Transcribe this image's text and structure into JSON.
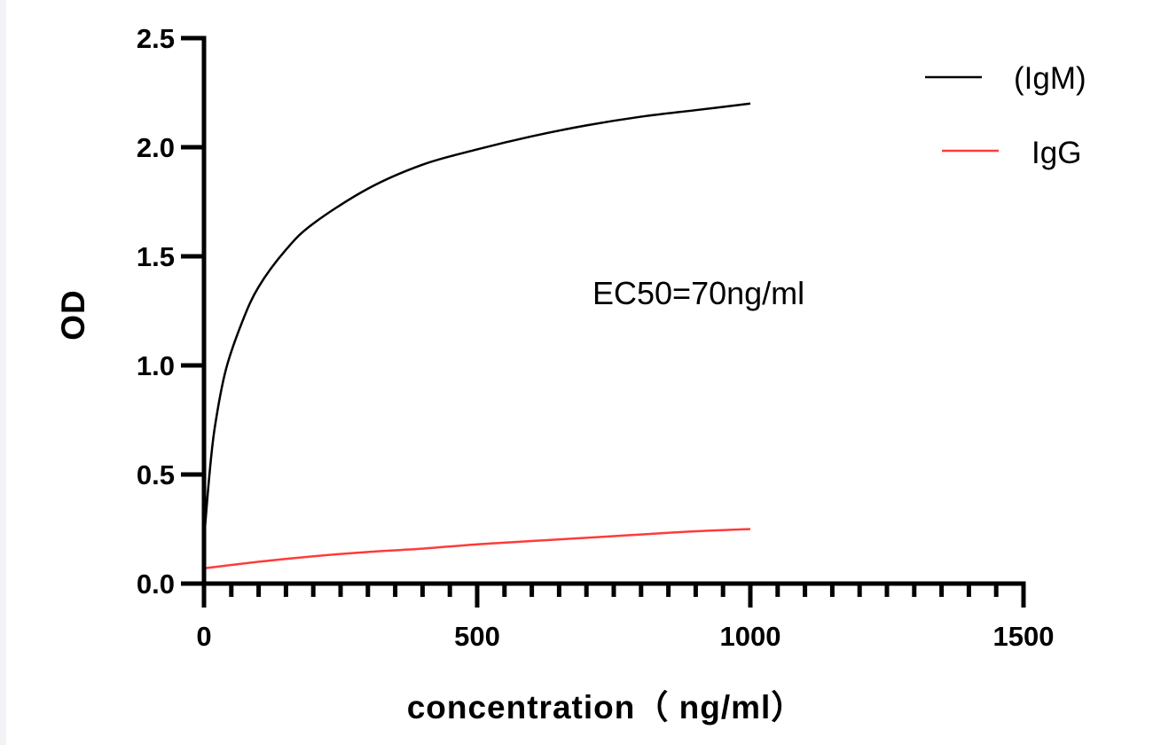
{
  "chart_data": {
    "type": "line",
    "title": "",
    "xlabel": "concentration（ ng/ml）",
    "ylabel": "OD",
    "xlim": [
      0,
      1500
    ],
    "ylim": [
      0,
      2.5
    ],
    "xticks": [
      0,
      500,
      1000,
      1500
    ],
    "xtick_labels": [
      "0",
      "500",
      "1000",
      "1500"
    ],
    "x_minor_step": 50,
    "yticks": [
      0,
      0.5,
      1.0,
      1.5,
      2.0,
      2.5
    ],
    "ytick_labels": [
      "0.0",
      "0.5",
      "1.0",
      "1.5",
      "2.0",
      "2.5"
    ],
    "grid": false,
    "legend_position": "top-right",
    "annotation": "EC50=70ng/ml",
    "series": [
      {
        "name": "(IgM)",
        "color": "#000000",
        "x": [
          0,
          10,
          20,
          40,
          70,
          100,
          150,
          200,
          300,
          400,
          500,
          600,
          700,
          800,
          900,
          1000
        ],
        "y": [
          0.2,
          0.5,
          0.72,
          0.98,
          1.2,
          1.36,
          1.53,
          1.65,
          1.81,
          1.92,
          1.99,
          2.05,
          2.1,
          2.14,
          2.17,
          2.2
        ]
      },
      {
        "name": "IgG",
        "color": "#ff3b3b",
        "x": [
          0,
          100,
          200,
          300,
          400,
          500,
          600,
          700,
          800,
          900,
          1000
        ],
        "y": [
          0.07,
          0.1,
          0.125,
          0.145,
          0.16,
          0.18,
          0.195,
          0.21,
          0.225,
          0.24,
          0.25
        ]
      }
    ]
  }
}
